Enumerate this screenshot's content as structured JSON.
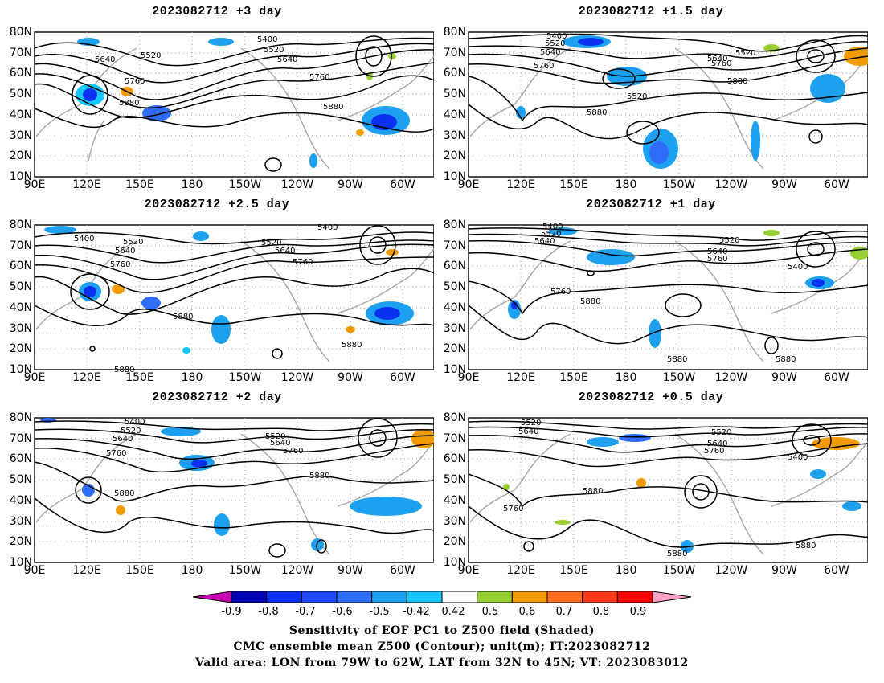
{
  "panels": [
    {
      "title": "2023082712  +3 day"
    },
    {
      "title": "2023082712  +1.5 day"
    },
    {
      "title": "2023082712  +2.5 day"
    },
    {
      "title": "2023082712  +1 day"
    },
    {
      "title": "2023082712  +2 day"
    },
    {
      "title": "2023082712  +0.5 day"
    }
  ],
  "lat_ticks": [
    "80N",
    "70N",
    "60N",
    "50N",
    "40N",
    "30N",
    "20N",
    "10N"
  ],
  "lon_ticks": [
    "90E",
    "120E",
    "150E",
    "180",
    "150W",
    "120W",
    "90W",
    "60W"
  ],
  "contour_labels": {
    "p0": [
      "5400",
      "5520",
      "5640",
      "5520",
      "5640",
      "5760",
      "5880",
      "5760",
      "5880"
    ],
    "p1": [
      "5400",
      "5520",
      "5640",
      "5760",
      "5640",
      "5520",
      "5760",
      "5880",
      "5520",
      "5880"
    ],
    "p2": [
      "5400",
      "5400",
      "5520",
      "5640",
      "5520",
      "5640",
      "5760",
      "5760",
      "5880",
      "5880",
      "5880"
    ],
    "p3": [
      "5400",
      "5520",
      "5640",
      "5520",
      "5640",
      "5760",
      "5400",
      "5760",
      "5880",
      "5880",
      "5880"
    ],
    "p4": [
      "5400",
      "5520",
      "5640",
      "5520",
      "5640",
      "5760",
      "5760",
      "5880",
      "5880"
    ],
    "p5": [
      "5520",
      "5640",
      "5520",
      "5640",
      "5760",
      "5400",
      "5880",
      "5760",
      "5880",
      "5880"
    ]
  },
  "colorbar": {
    "labels": [
      "-0.9",
      "-0.8",
      "-0.7",
      "-0.6",
      "-0.5",
      "-0.42",
      "0.42",
      "0.5",
      "0.6",
      "0.7",
      "0.8",
      "0.9"
    ],
    "colors": [
      "#0000b4",
      "#0a30f0",
      "#1e4bff",
      "#2f6cf8",
      "#1ea0f0",
      "#14c8ff",
      "#ffffff",
      "#97cf33",
      "#f29b00",
      "#ff6d1f",
      "#ff3a1a",
      "#ff0000"
    ],
    "end_low_color": "#c800b4",
    "end_high_color": "#ffa0c8"
  },
  "captions": [
    "Sensitivity of EOF PC1 to Z500 field (Shaded)",
    "CMC ensemble mean Z500 (Contour); unit(m); IT:2023082712",
    "Valid area: LON from 79W to 62W, LAT from 32N to 45N; VT: 2023083012"
  ]
}
